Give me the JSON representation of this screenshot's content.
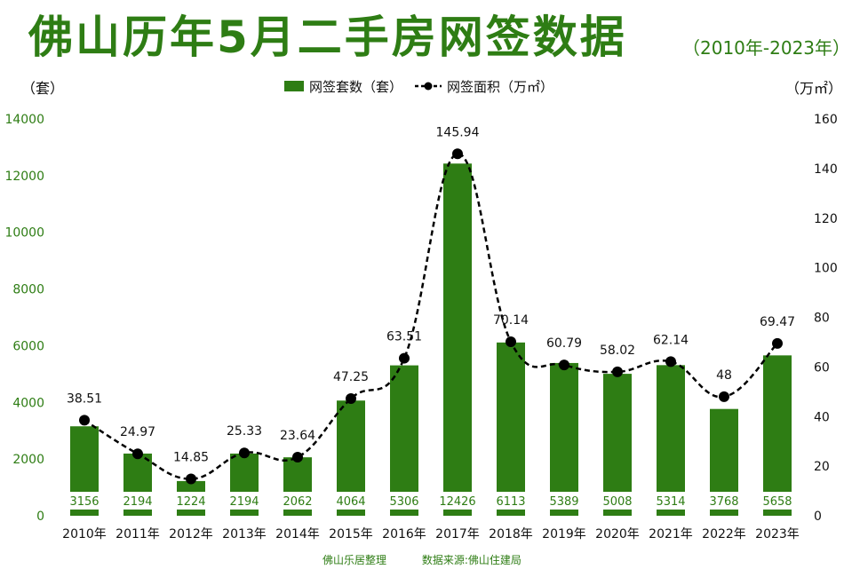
{
  "header": {
    "title": "佛山历年5月二手房网签数据",
    "range": "（2010年-2023年）"
  },
  "axes": {
    "left_unit": "（套）",
    "right_unit": "（万㎡）"
  },
  "legend": {
    "bar_label": "网签套数（套）",
    "line_label": "网签面积（万㎡）"
  },
  "footer": {
    "author": "佛山乐居整理",
    "source": "数据来源:佛山住建局"
  },
  "colors": {
    "bar": "#2e7d14",
    "line": "#000000",
    "axis_text": "#2e7d14"
  },
  "chart_data": {
    "type": "bar",
    "title": "佛山历年5月二手房网签数据",
    "categories": [
      "2010年",
      "2011年",
      "2012年",
      "2013年",
      "2014年",
      "2015年",
      "2016年",
      "2017年",
      "2018年",
      "2019年",
      "2020年",
      "2021年",
      "2022年",
      "2023年"
    ],
    "series": [
      {
        "name": "网签套数（套）",
        "type": "bar",
        "axis": "left",
        "values": [
          3156,
          2194,
          1224,
          2194,
          2062,
          4064,
          5306,
          12426,
          6113,
          5389,
          5008,
          5314,
          3768,
          5658
        ],
        "labels": [
          "3156",
          "2194",
          "1224",
          "2194",
          "2062",
          "4064",
          "5306",
          "12426",
          "6113",
          "5389",
          "5008",
          "5314",
          "3768",
          "5658"
        ]
      },
      {
        "name": "网签面积（万㎡）",
        "type": "line",
        "axis": "right",
        "values": [
          38.51,
          24.97,
          14.85,
          25.33,
          23.64,
          47.25,
          63.51,
          145.94,
          70.14,
          60.79,
          58.02,
          62.14,
          48,
          69.47
        ],
        "labels": [
          "38.51",
          "24.97",
          "14.85",
          "25.33",
          "23.64",
          "47.25",
          "63.51",
          "145.94",
          "70.14",
          "60.79",
          "58.02",
          "62.14",
          "48",
          "69.47"
        ]
      }
    ],
    "y_left": {
      "lim": [
        0,
        14000
      ],
      "ticks": [
        "0",
        "2000",
        "4000",
        "6000",
        "8000",
        "10000",
        "12000",
        "14000"
      ]
    },
    "y_right": {
      "lim": [
        0,
        160
      ],
      "ticks": [
        "0",
        "20",
        "40",
        "60",
        "80",
        "100",
        "120",
        "140",
        "160"
      ]
    },
    "grid": false,
    "legend_position": "top-center"
  }
}
